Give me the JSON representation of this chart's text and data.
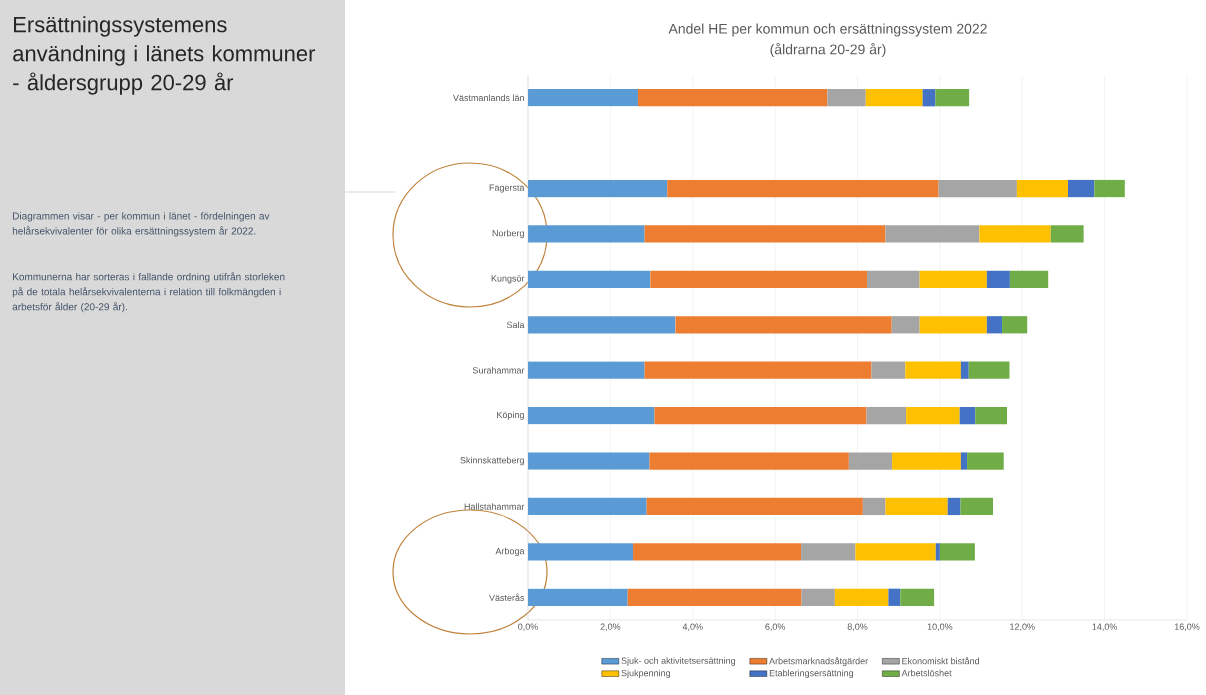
{
  "chart_data": {
    "type": "bar",
    "orientation": "horizontal",
    "stacked": true,
    "title": "Andel HE per kommun och ersättningssystem 2022",
    "subtitle": "(åldrarna 20-29 år)",
    "annotations": [
      "Ersättningssystemens användning i länets kommuner",
      "- åldersgrupp 20-29 år",
      "Diagrammen visar - per kommun i länet - fördelningen av helårsekvivalenter för olika ersättningssystem år 2022.",
      "Kommunerna har sorteras i fallande ordning utifrån storleken på de totala helårsekvivalenterna i relation till folkmängden i arbetsför ålder (20-29 år)."
    ],
    "categories": [
      "Västmanlands län",
      null,
      "Fagersta",
      "Norberg",
      "Kungsör",
      "Sala",
      "Surahammar",
      "Köping",
      "Skinnskatteberg",
      "Hallstahammar",
      "Arboga",
      "Västerås"
    ],
    "series": [
      {
        "name": "Sjuk- och aktivitetsersättning",
        "color": "#5b9bd5",
        "values": [
          2.67,
          null,
          3.38,
          2.83,
          2.97,
          3.58,
          2.83,
          3.07,
          2.95,
          2.88,
          2.55,
          2.42
        ]
      },
      {
        "name": "Arbetsmarknadsåtgärder",
        "color": "#ed7d31",
        "values": [
          4.6,
          null,
          6.59,
          5.85,
          5.26,
          5.25,
          5.51,
          5.15,
          4.84,
          5.25,
          4.08,
          4.22
        ]
      },
      {
        "name": "Ekonomiskt bistånd",
        "color": "#a5a5a5",
        "values": [
          0.93,
          null,
          1.9,
          2.28,
          1.28,
          0.68,
          0.82,
          0.96,
          1.05,
          0.55,
          1.32,
          0.81
        ]
      },
      {
        "name": "Sjukpenning",
        "color": "#ffc000",
        "values": [
          1.38,
          null,
          1.24,
          1.73,
          1.63,
          1.63,
          1.35,
          1.3,
          1.67,
          1.51,
          1.95,
          1.3
        ]
      },
      {
        "name": "Etableringsersättning",
        "color": "#4472c4",
        "values": [
          0.31,
          null,
          0.64,
          null,
          0.56,
          0.37,
          0.19,
          0.38,
          0.15,
          0.31,
          0.1,
          0.29
        ]
      },
      {
        "name": "Arbetslöshet",
        "color": "#70ad47",
        "values": [
          0.82,
          null,
          0.74,
          0.8,
          0.93,
          0.61,
          0.99,
          0.77,
          0.89,
          0.79,
          0.85,
          0.82
        ]
      }
    ],
    "xlim": [
      0,
      16
    ],
    "xticks": [
      {
        "value": 0,
        "label": "0,0%"
      },
      {
        "value": 2,
        "label": "2,0%"
      },
      {
        "value": 4,
        "label": "4,0%"
      },
      {
        "value": 6,
        "label": "6,0%"
      },
      {
        "value": 8,
        "label": "8,0%"
      },
      {
        "value": 10,
        "label": "10,0%"
      },
      {
        "value": 12,
        "label": "12,0%"
      },
      {
        "value": 14,
        "label": "14,0%"
      },
      {
        "value": 16,
        "label": "16,0%"
      }
    ],
    "grid": "x",
    "legend": "bottom"
  }
}
